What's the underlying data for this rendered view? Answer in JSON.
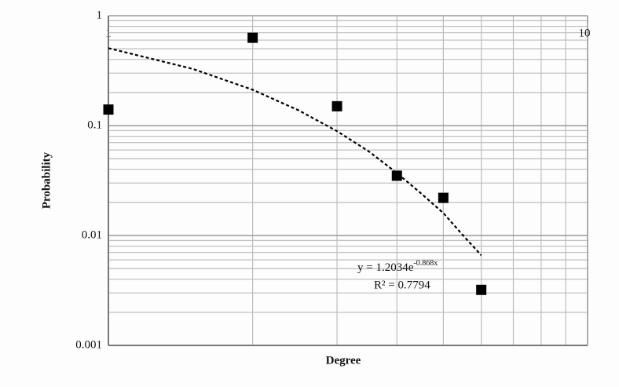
{
  "chart_data": {
    "type": "scatter",
    "x_label": "Degree",
    "y_label": "Probability",
    "x": [
      1,
      2,
      3,
      4,
      5,
      6
    ],
    "series": [
      {
        "color": "#000000",
        "values": [
          0.14,
          0.63,
          0.15,
          0.035,
          0.022,
          0.0032
        ]
      }
    ],
    "trendline": {
      "color": "#000000",
      "x": [
        1,
        1.5,
        2,
        2.5,
        3,
        3.5,
        4,
        4.5,
        5,
        5.5,
        6
      ],
      "values": [
        0.507,
        0.328,
        0.212,
        0.137,
        0.089,
        0.058,
        0.037,
        0.024,
        0.016,
        0.01,
        0.0066
      ]
    },
    "annotations": {
      "equation": "y = 1.2034e",
      "equation_exponent": "-0.868x",
      "r_squared": "R² = 0.7794"
    },
    "xlog": true,
    "ylog": true,
    "xlim": [
      1,
      10
    ],
    "ylim": [
      0.001,
      1
    ],
    "xticks": [
      1,
      10
    ],
    "yticks": [
      0.001,
      0.01,
      0.1,
      1
    ],
    "xminorticks": [
      2,
      3,
      4,
      5,
      6,
      7,
      8,
      9
    ],
    "yminorticks": [
      0.002,
      0.003,
      0.004,
      0.005,
      0.006,
      0.007,
      0.008,
      0.009,
      0.02,
      0.03,
      0.04,
      0.05,
      0.06,
      0.07,
      0.08,
      0.09,
      0.2,
      0.3,
      0.4,
      0.5,
      0.6,
      0.7,
      0.8,
      0.9
    ],
    "grid": true
  }
}
